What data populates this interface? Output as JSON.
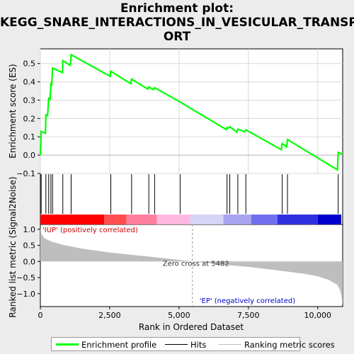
{
  "title_lines": [
    "Enrichment plot:",
    "KEGG_SNARE_INTERACTIONS_IN_VESICULAR_TRANSP",
    "ORT"
  ],
  "chart_data": {
    "type": "line",
    "es_panel": {
      "ylabel": "Enrichment score (ES)",
      "ylim": [
        -0.1,
        0.58
      ],
      "yticks": [
        -0.1,
        0.0,
        0.1,
        0.2,
        0.3,
        0.4,
        0.5
      ],
      "ytick_labels": [
        "−0.1",
        "0.0",
        "0.1",
        "0.2",
        "0.3",
        "0.4",
        "0.5"
      ],
      "series": [
        {
          "name": "Enrichment profile",
          "color": "#00ff00",
          "x": [
            0,
            30,
            180,
            200,
            260,
            300,
            350,
            380,
            410,
            440,
            800,
            810,
            1080,
            1110,
            2520,
            2540,
            3260,
            3290,
            3880,
            3910,
            4080,
            4120,
            5020,
            5040,
            6700,
            6730,
            6790,
            6830,
            7090,
            7120,
            7370,
            7410,
            8690,
            8720,
            8880,
            8910,
            10710,
            10740,
            10900
          ],
          "y": [
            0.0,
            0.13,
            0.12,
            0.22,
            0.215,
            0.31,
            0.305,
            0.39,
            0.385,
            0.475,
            0.45,
            0.515,
            0.49,
            0.548,
            0.43,
            0.458,
            0.39,
            0.415,
            0.36,
            0.372,
            0.358,
            0.368,
            0.292,
            0.29,
            0.14,
            0.15,
            0.148,
            0.155,
            0.125,
            0.142,
            0.128,
            0.138,
            0.03,
            0.063,
            0.045,
            0.085,
            -0.08,
            0.015,
            0.005
          ]
        }
      ]
    },
    "hits": {
      "name": "Hits",
      "color": "#000000",
      "x": [
        30,
        200,
        300,
        380,
        440,
        810,
        1110,
        2540,
        3290,
        3910,
        4120,
        5040,
        6730,
        6830,
        7120,
        7410,
        8720,
        8910,
        10740
      ]
    },
    "rank_bar": {
      "colors": [
        "#ff0000",
        "#ff4e4e",
        "#ff7e9e",
        "#ffb9e0",
        "#d6d3f7",
        "#a9a3f0",
        "#7070ee",
        "#3030e0",
        "#0000cc"
      ],
      "stops": [
        0,
        2300,
        3100,
        4200,
        5400,
        6600,
        7600,
        8550,
        10000,
        10850
      ]
    },
    "ranked_metric": {
      "name": "Ranking metric scores",
      "ylabel": "Ranked list metric (Signal2Noise)",
      "ylim": [
        -1.4,
        1.15
      ],
      "yticks": [
        -1.0,
        -0.5,
        0.0,
        0.5,
        1.0
      ],
      "ytick_labels": [
        "−1.0",
        "−0.5",
        "0.0",
        "0.5",
        "1.0"
      ],
      "fill": "#bebebe",
      "x": [
        0,
        40,
        150,
        400,
        800,
        1500,
        2500,
        3500,
        4500,
        5482,
        6500,
        7500,
        8500,
        9500,
        10000,
        10400,
        10700,
        10800,
        10850,
        10900
      ],
      "values": [
        1.05,
        0.85,
        0.72,
        0.62,
        0.52,
        0.4,
        0.28,
        0.19,
        0.1,
        0.0,
        -0.09,
        -0.17,
        -0.27,
        -0.38,
        -0.46,
        -0.57,
        -0.72,
        -0.88,
        -1.05,
        -1.35
      ]
    },
    "xlabel": "Rank in Ordered Dataset",
    "xlim": [
      0,
      10900
    ],
    "xticks": [
      0,
      2500,
      5000,
      7500,
      10000
    ],
    "xtick_labels": [
      "0",
      "2,500",
      "5,000",
      "7,500",
      "10,000"
    ],
    "zero_cross": 5482,
    "annotations": {
      "zero_cross": "Zero cross at 5482",
      "positive": "'IUP' (positively correlated)",
      "negative": "'EP' (negatively correlated)"
    }
  },
  "legend": {
    "items": [
      {
        "label": "Enrichment profile",
        "color": "#00ff00"
      },
      {
        "label": "Hits",
        "color": "#000000"
      },
      {
        "label": "Ranking metric scores",
        "color": "#bebebe"
      }
    ]
  }
}
